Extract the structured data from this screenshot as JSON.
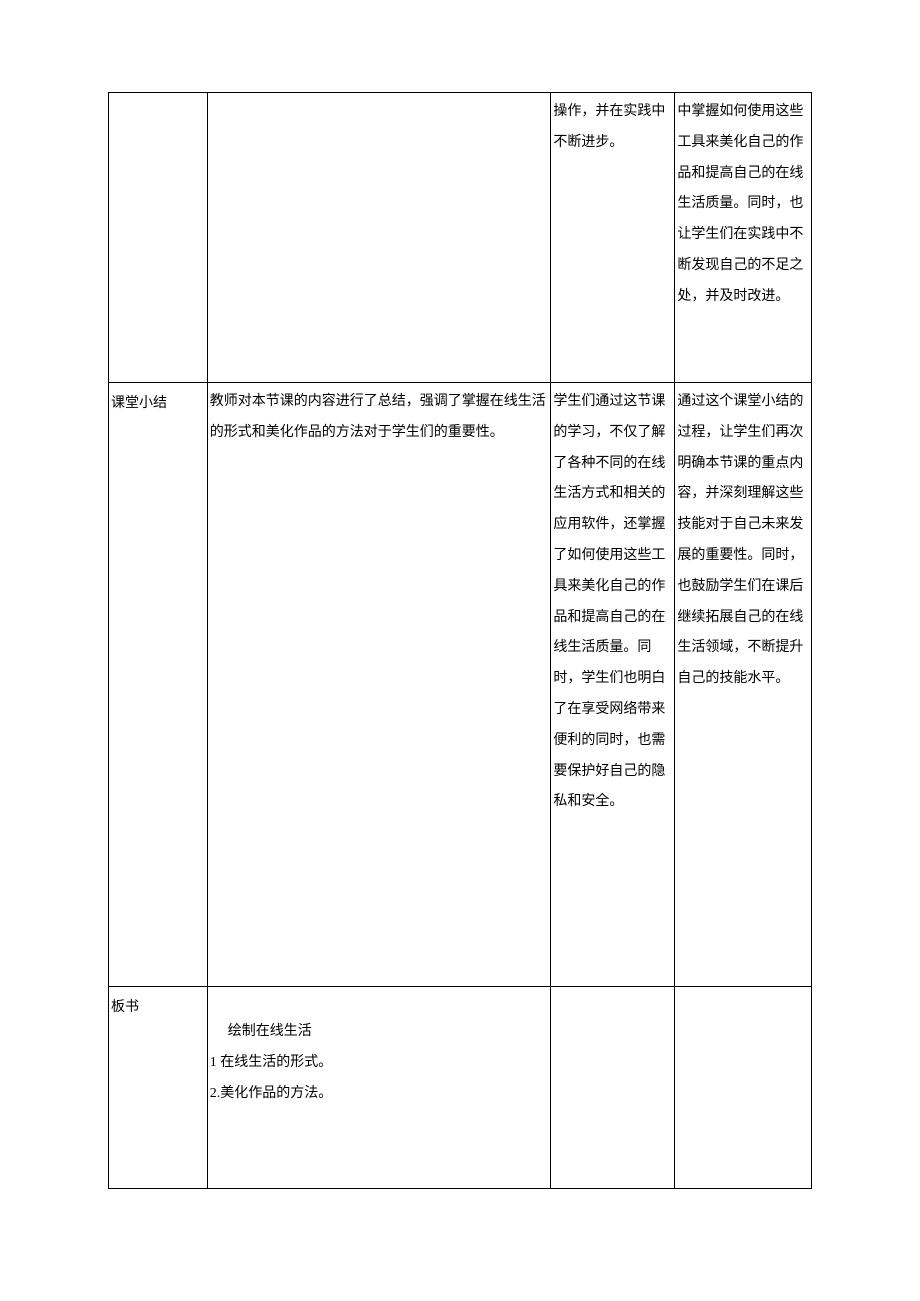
{
  "row1": {
    "col1": "",
    "col2": "",
    "col3": "操作，并在实践中不断进步。",
    "col4": "中掌握如何使用这些工具来美化自己的作品和提高自己的在线生活质量。同时，也让学生们在实践中不断发现自己的不足之处，并及时改进。"
  },
  "row2": {
    "col1": "课堂小结",
    "col2": "教师对本节课的内容进行了总结，强调了掌握在线生活的形式和美化作品的方法对于学生们的重要性。",
    "col3": "学生们通过这节课的学习，不仅了解了各种不同的在线生活方式和相关的应用软件，还掌握了如何使用这些工具来美化自己的作品和提高自己的在线生活质量。同时，学生们也明白了在享受网络带来便利的同时，也需要保护好自己的隐私和安全。",
    "col4": "通过这个课堂小结的过程，让学生们再次明确本节课的重点内容，并深刻理解这些技能对于自己未来发展的重要性。同时，也鼓励学生们在课后继续拓展自己的在线生活领域，不断提升自己的技能水平。"
  },
  "row3": {
    "col1": "板书",
    "board_title": "绘制在线生活",
    "board_line1": "1 在线生活的形式。",
    "board_line2": "2.美化作品的方法。",
    "col3": "",
    "col4": ""
  }
}
